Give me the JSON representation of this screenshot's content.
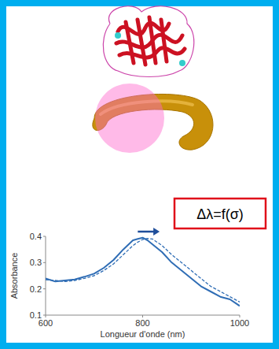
{
  "chart_data": {
    "type": "line",
    "annotation": "Δλ=f(σ)",
    "x_label": "Longueur d'onde (nm)",
    "y_label": "Absorbance",
    "x": [
      600,
      620,
      640,
      660,
      680,
      700,
      720,
      740,
      760,
      780,
      790,
      800,
      810,
      820,
      840,
      860,
      880,
      900,
      920,
      940,
      960,
      980,
      1000
    ],
    "series": [
      {
        "color": "#2f6db5",
        "line_style": "solid",
        "values": [
          0.24,
          0.228,
          0.232,
          0.236,
          0.246,
          0.258,
          0.28,
          0.31,
          0.35,
          0.385,
          0.39,
          0.395,
          0.385,
          0.37,
          0.34,
          0.3,
          0.27,
          0.24,
          0.21,
          0.19,
          0.17,
          0.16,
          0.135
        ]
      },
      {
        "color": "#2f6db5",
        "line_style": "dashed",
        "values": [
          0.235,
          0.232,
          0.228,
          0.232,
          0.24,
          0.25,
          0.27,
          0.295,
          0.33,
          0.365,
          0.378,
          0.388,
          0.392,
          0.39,
          0.365,
          0.33,
          0.3,
          0.27,
          0.24,
          0.21,
          0.19,
          0.17,
          0.15
        ]
      }
    ],
    "xlim": [
      600,
      1000
    ],
    "xticks": [
      600,
      800,
      1000
    ],
    "ylim": [
      0.1,
      0.4
    ],
    "yticks": [
      0.1,
      0.2,
      0.3,
      0.4
    ],
    "grid": false
  }
}
